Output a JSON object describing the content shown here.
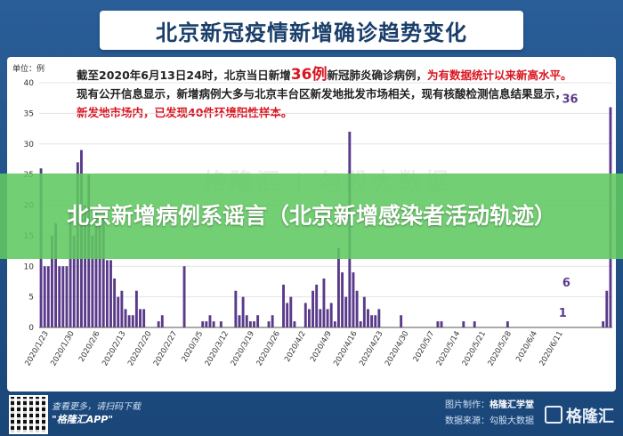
{
  "header": {
    "title": "北京新冠疫情新增确诊趋势变化"
  },
  "annotation": {
    "p1": "截至2020年6月13日24时，北京当日新增",
    "big": "36例",
    "p2": "新冠肺炎确诊病例，",
    "hl1": "为有数据统计以来新高水平。",
    "p3": "现有公开信息显示，新增病例大多与北京丰台区新发地批发市场相关，现有核酸检测信息结果显示，",
    "hl2": "新发地市场内，已发现40件环境阳性样本。"
  },
  "watermark": "格隆汇 | 勾股大数据",
  "overlay": {
    "headline": "北京新增病例系谣言（北京新增感染者活动轨迹）"
  },
  "footer": {
    "left_line1": "查看更多，请扫码下载",
    "left_line2": "\"格隆汇APP\"",
    "right_line1_label": "图片制作：",
    "right_line1_value": "格隆汇学堂",
    "right_line2": "数据来源：勾股大数据",
    "brand": "格隆汇"
  },
  "colors": {
    "bar": "#5a3a8a",
    "title_text": "#1a3f6b",
    "highlight": "#d9141f"
  },
  "chart_data": {
    "type": "bar",
    "title": "北京新冠疫情新增确诊趋势变化",
    "ylabel": "单位：例",
    "ylim": [
      0,
      40
    ],
    "yticks": [
      0,
      5,
      10,
      15,
      20,
      25,
      30,
      35,
      40
    ],
    "x_start": "2020-01-21",
    "x_end": "2020-06-13",
    "xtick_labels": [
      "2020/1/23",
      "2020/1/30",
      "2020/2/6",
      "2020/2/13",
      "2020/2/20",
      "2020/2/27",
      "2020/3/5",
      "2020/3/12",
      "2020/3/19",
      "2020/3/26",
      "2020/4/2",
      "2020/4/9",
      "2020/4/16",
      "2020/4/23",
      "2020/4/30",
      "2020/5/7",
      "2020/5/14",
      "2020/5/21",
      "2020/5/28",
      "2020/6/4",
      "2020/6/11"
    ],
    "values": [
      26,
      10,
      10,
      15,
      17,
      10,
      10,
      10,
      19,
      15,
      27,
      29,
      20,
      25,
      15,
      19,
      17,
      18,
      11,
      11,
      8,
      5,
      6,
      3,
      2,
      2,
      6,
      3,
      3,
      0,
      0,
      0,
      1,
      2,
      0,
      0,
      0,
      0,
      0,
      10,
      0,
      0,
      0,
      0,
      1,
      1,
      2,
      1,
      0,
      1,
      0,
      0,
      0,
      6,
      2,
      5,
      2,
      1,
      1,
      2,
      0,
      0,
      1,
      2,
      0,
      0,
      7,
      4,
      5,
      1,
      0,
      0,
      4,
      3,
      6,
      7,
      3,
      8,
      3,
      4,
      1,
      13,
      9,
      5,
      32,
      9,
      6,
      1,
      5,
      3,
      2,
      2,
      3,
      0,
      0,
      0,
      0,
      0,
      2,
      0,
      0,
      0,
      0,
      0,
      0,
      0,
      0,
      0,
      1,
      1,
      0,
      0,
      0,
      0,
      0,
      1,
      0,
      0,
      1,
      0,
      0,
      0,
      0,
      0,
      0,
      0,
      0,
      1,
      0,
      0,
      0,
      0,
      0,
      0,
      0,
      0,
      0,
      0,
      0,
      0,
      0,
      0,
      0,
      0,
      0,
      0,
      0,
      0,
      0,
      0,
      0,
      0,
      0,
      1,
      6,
      36
    ],
    "labeled_values": [
      {
        "date": "2020-06-11",
        "value": 1
      },
      {
        "date": "2020-06-12",
        "value": 6
      },
      {
        "date": "2020-06-13",
        "value": 36
      }
    ]
  }
}
